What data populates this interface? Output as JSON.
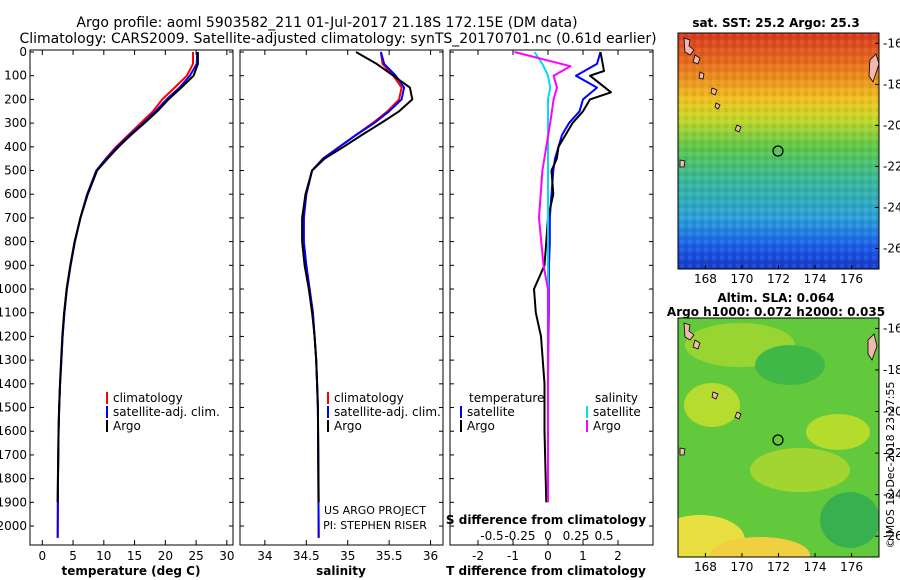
{
  "header": {
    "line1": "Argo profile: aoml 5903582_211 01-Jul-2017 21.18S 172.15E (DM data)",
    "line2": "Climatology: CARS2009. Satellite-adjusted climatology: synTS_20170701.nc (0.61d earlier)"
  },
  "colors": {
    "climatology": "#ff0000",
    "satellite": "#0000ff",
    "argo": "#000000",
    "s_satellite": "#00e0e0",
    "s_climatology": "#ff00ff"
  },
  "chart_data": [
    {
      "type": "line",
      "id": "temperature",
      "xlabel": "temperature (deg C)",
      "ylabel": "",
      "xlim": [
        -2,
        31
      ],
      "ylim": [
        2080,
        0
      ],
      "xticks": [
        0,
        5,
        10,
        15,
        20,
        25,
        30
      ],
      "yticks": [
        0,
        100,
        200,
        300,
        400,
        500,
        600,
        700,
        800,
        900,
        1000,
        1100,
        1200,
        1300,
        1400,
        1500,
        1600,
        1700,
        1800,
        1900,
        2000
      ],
      "legend": {
        "position": "lower-right",
        "entries": [
          "climatology",
          "satellite-adj. clim.",
          "Argo"
        ]
      },
      "series": [
        {
          "name": "climatology",
          "color": "#ff0000",
          "x": [
            24.5,
            24.5,
            23.5,
            21.5,
            19.5,
            18,
            16,
            14,
            12,
            10.3,
            8.8,
            7.3,
            6.2,
            5.3,
            4.6,
            4.0,
            3.6,
            3.3,
            3.1,
            2.9,
            2.75,
            2.65,
            2.6,
            2.55,
            2.5
          ],
          "y": [
            0,
            50,
            100,
            150,
            200,
            250,
            300,
            350,
            400,
            450,
            500,
            600,
            700,
            800,
            900,
            1000,
            1100,
            1200,
            1300,
            1400,
            1500,
            1600,
            1700,
            1800,
            2050
          ]
        },
        {
          "name": "satellite-adj. clim.",
          "color": "#0000ff",
          "x": [
            25.2,
            25.1,
            24.0,
            22.3,
            20.2,
            18.4,
            16.4,
            14.2,
            12.2,
            10.4,
            8.8,
            7.3,
            6.2,
            5.3,
            4.6,
            4.0,
            3.6,
            3.3,
            3.1,
            2.9,
            2.75,
            2.65,
            2.6,
            2.55,
            2.5
          ],
          "y": [
            0,
            50,
            100,
            150,
            200,
            250,
            300,
            350,
            400,
            450,
            500,
            600,
            700,
            800,
            900,
            1000,
            1100,
            1200,
            1300,
            1400,
            1500,
            1600,
            1700,
            1800,
            2050
          ]
        },
        {
          "name": "Argo",
          "color": "#000000",
          "x": [
            25.3,
            25.3,
            24.6,
            22.6,
            20.5,
            18.7,
            16.6,
            14.4,
            12.4,
            10.6,
            8.9,
            7.4,
            6.2,
            5.25,
            4.55,
            3.95,
            3.55,
            3.25,
            3.05,
            2.88,
            2.73,
            2.63,
            2.58,
            2.53,
            2.48
          ],
          "y": [
            0,
            50,
            100,
            150,
            200,
            250,
            300,
            350,
            400,
            450,
            500,
            600,
            700,
            800,
            900,
            1000,
            1100,
            1200,
            1300,
            1400,
            1500,
            1600,
            1700,
            1800,
            1900
          ]
        }
      ]
    },
    {
      "type": "line",
      "id": "salinity",
      "xlabel": "salinity",
      "xlim": [
        33.7,
        36.15
      ],
      "ylim": [
        2080,
        0
      ],
      "xticks": [
        34,
        34.5,
        35,
        35.5,
        36
      ],
      "xticklabels": [
        "34",
        "34.5",
        "35",
        "35.5",
        "36"
      ],
      "legend": {
        "position": "lower-right",
        "entries": [
          "climatology",
          "satellite-adj. clim.",
          "Argo"
        ]
      },
      "series": [
        {
          "name": "climatology",
          "color": "#ff0000",
          "x": [
            35.4,
            35.42,
            35.55,
            35.65,
            35.62,
            35.48,
            35.3,
            35.1,
            34.9,
            34.7,
            34.57,
            34.5,
            34.47,
            34.47,
            34.5,
            34.54,
            34.58,
            34.6,
            34.62,
            34.63,
            34.64,
            34.65
          ],
          "y": [
            0,
            50,
            100,
            150,
            200,
            250,
            300,
            350,
            400,
            450,
            500,
            600,
            700,
            800,
            900,
            1000,
            1100,
            1200,
            1300,
            1400,
            1500,
            2050
          ]
        },
        {
          "name": "satellite-adj. clim.",
          "color": "#0000ff",
          "x": [
            35.4,
            35.44,
            35.58,
            35.68,
            35.65,
            35.5,
            35.32,
            35.1,
            34.9,
            34.7,
            34.57,
            34.5,
            34.47,
            34.47,
            34.5,
            34.54,
            34.58,
            34.6,
            34.62,
            34.63,
            34.64,
            34.65
          ],
          "y": [
            0,
            50,
            100,
            150,
            200,
            250,
            300,
            350,
            400,
            450,
            500,
            600,
            700,
            800,
            900,
            1000,
            1100,
            1200,
            1300,
            1400,
            1500,
            2050
          ]
        },
        {
          "name": "Argo",
          "color": "#000000",
          "x": [
            35.1,
            35.35,
            35.55,
            35.75,
            35.78,
            35.62,
            35.4,
            35.17,
            34.95,
            34.72,
            34.57,
            34.49,
            34.45,
            34.45,
            34.48,
            34.53,
            34.57,
            34.6,
            34.62,
            34.63,
            34.64,
            34.65
          ],
          "y": [
            0,
            50,
            100,
            150,
            200,
            250,
            300,
            350,
            400,
            450,
            500,
            600,
            700,
            800,
            900,
            1000,
            1100,
            1200,
            1300,
            1400,
            1500,
            1900
          ]
        }
      ]
    },
    {
      "type": "line",
      "id": "difference",
      "xlabel": "T difference from climatology",
      "top_xlabel": "S difference from climatology",
      "xlim": [
        -2.8,
        3
      ],
      "ylim": [
        2080,
        0
      ],
      "xticks": [
        -2,
        -1,
        0,
        1,
        2
      ],
      "top_xticks": [
        -0.5,
        -0.25,
        0,
        0.25,
        0.5
      ],
      "top_xticklabels": [
        "-0.5",
        "-0.25",
        "0",
        "0.25",
        "0.5"
      ],
      "legend_temperature": {
        "title": "temperature",
        "entries": [
          "satellite",
          "Argo"
        ]
      },
      "legend_salinity": {
        "title": "salinity",
        "entries": [
          "satellite",
          "Argo"
        ]
      },
      "series": [
        {
          "name": "temperature satellite",
          "color": "#0000ff",
          "x": [
            1.5,
            1.4,
            0.8,
            1.4,
            1.0,
            0.9,
            0.6,
            0.4,
            0.3,
            0.2,
            0.15,
            0.1,
            0.05,
            0.05,
            0.03,
            0.02,
            0.02,
            0.01,
            0.0,
            0.0,
            0.0
          ],
          "y": [
            0,
            50,
            100,
            150,
            200,
            250,
            300,
            350,
            400,
            450,
            500,
            600,
            700,
            800,
            900,
            1000,
            1100,
            1200,
            1400,
            1600,
            1900
          ]
        },
        {
          "name": "temperature Argo",
          "color": "#000000",
          "x": [
            1.5,
            1.6,
            1.2,
            1.8,
            1.2,
            1.0,
            0.7,
            0.5,
            0.3,
            0.25,
            0.1,
            0.15,
            0.0,
            -0.05,
            -0.1,
            -0.4,
            -0.35,
            -0.2,
            -0.1,
            -0.1,
            -0.05
          ],
          "y": [
            0,
            80,
            100,
            170,
            200,
            250,
            300,
            350,
            400,
            450,
            500,
            600,
            700,
            800,
            900,
            1000,
            1100,
            1200,
            1400,
            1600,
            1900
          ]
        },
        {
          "name": "salinity satellite",
          "color": "#00e0e0",
          "x": [
            -0.12,
            -0.05,
            0.0,
            0.02,
            0.0,
            0.0,
            0.0,
            0.0,
            0.0,
            0.0,
            0.0,
            0.0,
            0.0
          ],
          "y": [
            0,
            50,
            100,
            150,
            200,
            400,
            600,
            800,
            1000,
            1200,
            1400,
            1600,
            1900
          ]
        },
        {
          "name": "salinity Argo",
          "color": "#ff00ff",
          "x": [
            -0.3,
            0.2,
            0.05,
            0.08,
            0.05,
            0.02,
            -0.05,
            -0.08,
            -0.04,
            0.0,
            0.0,
            0.0,
            0.0,
            0.0
          ],
          "y": [
            0,
            60,
            100,
            150,
            200,
            300,
            500,
            700,
            900,
            1000,
            1200,
            1400,
            1600,
            1900
          ]
        }
      ]
    }
  ],
  "maps": {
    "sst": {
      "title": "sat. SST: 25.2 Argo: 25.3",
      "xticks": [
        "168",
        "170",
        "172",
        "174",
        "176"
      ],
      "yticks": [
        "-16",
        "-18",
        "-20",
        "-22",
        "-24",
        "-26"
      ]
    },
    "sla": {
      "title1": "Altim. SLA: 0.064",
      "title2": "Argo h1000: 0.072 h2000: 0.035",
      "xticks": [
        "168",
        "170",
        "172",
        "174",
        "176"
      ],
      "yticks": [
        "-16",
        "-18",
        "-20",
        "-22",
        "-24",
        "-26"
      ]
    }
  },
  "credits": {
    "project": "US ARGO PROJECT",
    "pi": "PI: STEPHEN RISER",
    "imos": "©IMOS 12-Dec-2018 23:27:55"
  }
}
